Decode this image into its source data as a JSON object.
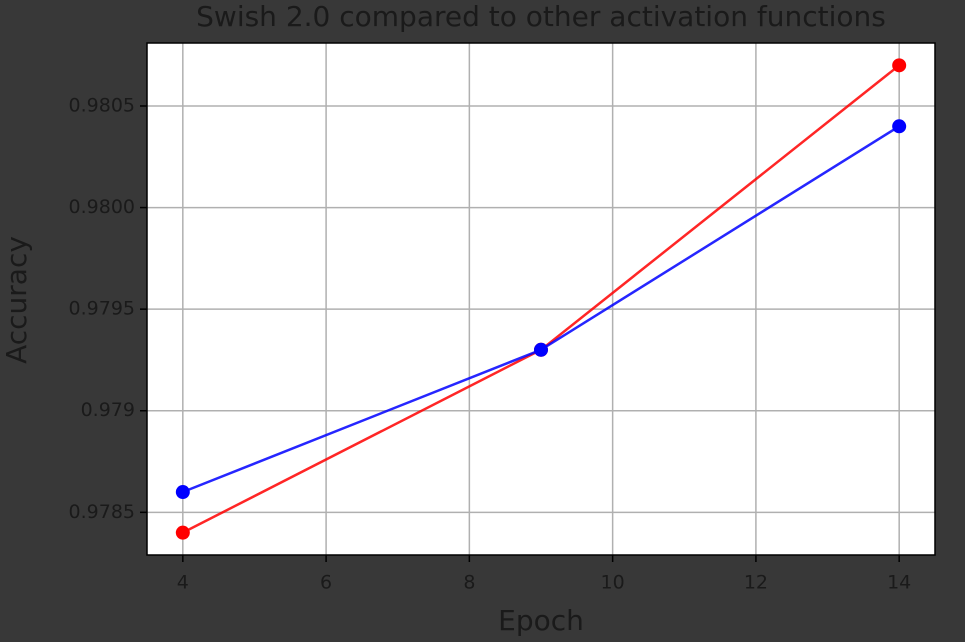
{
  "chart_data": {
    "type": "line",
    "title": "Swish 2.0 compared to other activation functions",
    "xlabel": "Epoch",
    "ylabel": "Accuracy",
    "x": [
      4,
      9,
      14
    ],
    "series": [
      {
        "color": "#ff0000",
        "values": [
          0.9784,
          0.9793,
          0.9807
        ]
      },
      {
        "color": "#0000ff",
        "values": [
          0.9786,
          0.9793,
          0.9804
        ]
      }
    ],
    "xlim": [
      3.5,
      14.5
    ],
    "xticks": [
      4,
      6,
      8,
      10,
      12,
      14
    ],
    "ylim": [
      0.97829,
      0.98081
    ],
    "yticks": [
      0.9785,
      0.979,
      {
        "value": 0.9795,
        "label": "0.9795"
      },
      {
        "value": 0.98,
        "label": "0.9800"
      },
      0.9805
    ],
    "grid": true
  }
}
